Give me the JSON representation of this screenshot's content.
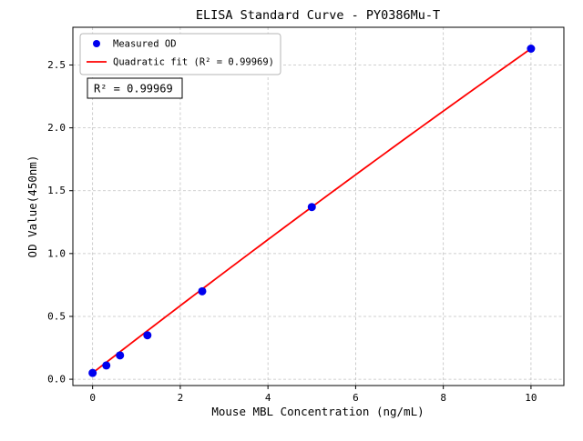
{
  "chart_data": {
    "type": "scatter",
    "title": "ELISA Standard Curve - PY0386Mu-T",
    "xlabel": "Mouse MBL Concentration (ng/mL)",
    "ylabel": "OD Value(450nm)",
    "xlim": [
      -0.45,
      10.75
    ],
    "ylim": [
      -0.05,
      2.8
    ],
    "xticks": [
      0,
      2,
      4,
      6,
      8,
      10
    ],
    "xtick_labels": [
      "0",
      "2",
      "4",
      "6",
      "8",
      "10"
    ],
    "yticks": [
      0.0,
      0.5,
      1.0,
      1.5,
      2.0,
      2.5
    ],
    "ytick_labels": [
      "0.0",
      "0.5",
      "1.0",
      "1.5",
      "2.0",
      "2.5"
    ],
    "grid": true,
    "legend_position": "upper-left",
    "series": [
      {
        "name": "Measured OD",
        "type": "scatter",
        "color": "#0000ee",
        "x": [
          0,
          0.313,
          0.625,
          1.25,
          2.5,
          5,
          10
        ],
        "y": [
          0.05,
          0.11,
          0.19,
          0.35,
          0.7,
          1.37,
          2.63
        ]
      },
      {
        "name": "Quadratic fit (R² = 0.99969)",
        "type": "line",
        "color": "#ff0000",
        "fit": {
          "a": 0.05,
          "b": 0.27,
          "c": -0.0012
        },
        "x_range": [
          0,
          10
        ]
      }
    ],
    "annotation": "R² = 0.99969",
    "r_squared": 0.99969
  }
}
